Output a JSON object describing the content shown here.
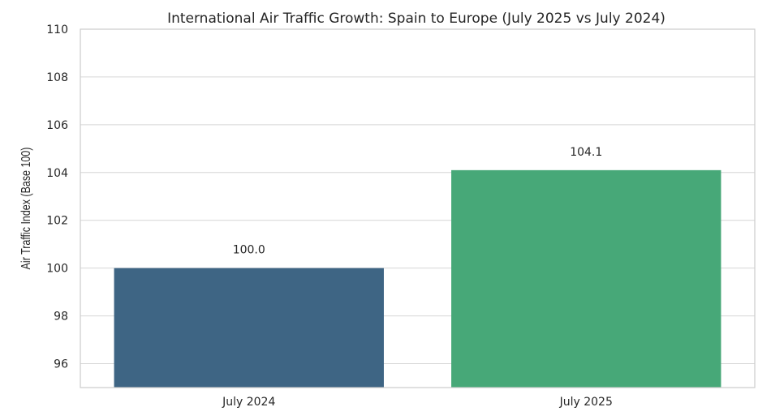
{
  "chart_data": {
    "type": "bar",
    "title": "International Air Traffic Growth: Spain to Europe (July 2025 vs July 2024)",
    "xlabel": "",
    "ylabel": "Air Traffic Index (Base 100)",
    "categories": [
      "July 2024",
      "July 2025"
    ],
    "values": [
      100.0,
      104.1
    ],
    "data_labels": [
      "100.0",
      "104.1"
    ],
    "bar_colors": [
      "#3e6584",
      "#47a878"
    ],
    "ylim": [
      95,
      110
    ],
    "yticks": [
      96,
      98,
      100,
      102,
      104,
      106,
      108,
      110
    ],
    "grid": true
  }
}
